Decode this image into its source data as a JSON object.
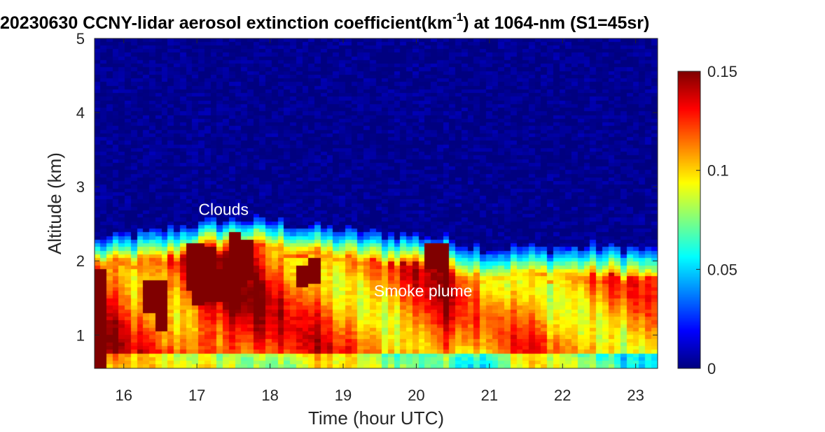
{
  "chart_data": {
    "type": "heatmap",
    "title_prefix": "20230630 CCNY-lidar aerosol extinction coefficient(km",
    "title_sup": "-1",
    "title_suffix": ") at 1064-nm (S1=45sr)",
    "xlabel": "Time (hour UTC)",
    "ylabel": "Altitude (km)",
    "xlim": [
      15.6,
      23.3
    ],
    "ylim": [
      0.55,
      5.0
    ],
    "xticks": [
      16,
      17,
      18,
      19,
      20,
      21,
      22,
      23
    ],
    "yticks": [
      1,
      2,
      3,
      4,
      5
    ],
    "colormap": "jet",
    "clim": [
      0,
      0.15
    ],
    "colorbar_ticks": [
      {
        "value": 0.15,
        "label": "0.15"
      },
      {
        "value": 0.1,
        "label": "0.1"
      },
      {
        "value": 0.05,
        "label": "0.05"
      },
      {
        "value": 0,
        "label": "0"
      }
    ],
    "annotations": [
      {
        "text": "Clouds",
        "x": 17.0,
        "y": 2.62
      },
      {
        "text": "Smoke plume",
        "x": 19.42,
        "y": 1.52
      }
    ],
    "layer_top_km": [
      [
        15.6,
        2.22
      ],
      [
        16.0,
        2.28
      ],
      [
        16.5,
        2.34
      ],
      [
        17.0,
        2.44
      ],
      [
        17.5,
        2.5
      ],
      [
        18.0,
        2.48
      ],
      [
        18.5,
        2.42
      ],
      [
        19.0,
        2.36
      ],
      [
        19.5,
        2.32
      ],
      [
        20.0,
        2.3
      ],
      [
        20.4,
        2.25
      ],
      [
        20.7,
        2.15
      ],
      [
        21.0,
        2.12
      ],
      [
        21.5,
        2.12
      ],
      [
        22.0,
        2.12
      ],
      [
        22.5,
        2.14
      ],
      [
        23.0,
        2.13
      ],
      [
        23.3,
        2.08
      ]
    ],
    "smoke_layer_extinction_km-1": [
      [
        15.6,
        0.13
      ],
      [
        16.0,
        0.12
      ],
      [
        16.5,
        0.11
      ],
      [
        17.0,
        0.13
      ],
      [
        17.5,
        0.14
      ],
      [
        18.0,
        0.12
      ],
      [
        18.5,
        0.12
      ],
      [
        19.0,
        0.11
      ],
      [
        19.5,
        0.11
      ],
      [
        20.0,
        0.12
      ],
      [
        20.4,
        0.13
      ],
      [
        20.7,
        0.11
      ],
      [
        21.0,
        0.1
      ],
      [
        21.5,
        0.11
      ],
      [
        22.0,
        0.11
      ],
      [
        22.5,
        0.11
      ],
      [
        23.0,
        0.11
      ],
      [
        23.3,
        0.1
      ]
    ],
    "cloud_extinction_km-1": 0.15,
    "free_troposphere_extinction_km-1": 0.0
  }
}
